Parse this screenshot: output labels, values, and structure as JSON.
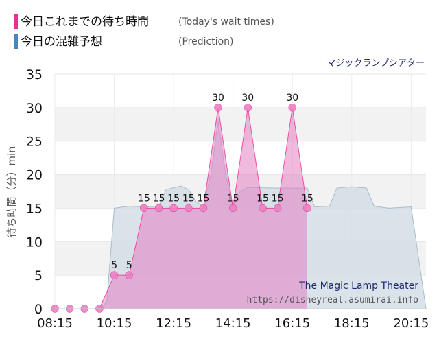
{
  "legend": {
    "today": {
      "title": "今日これまでの待ち時間",
      "subtitle": "(Today's wait times)",
      "color": "#e8308f"
    },
    "prediction": {
      "title": "今日の混雑予想",
      "subtitle": "(Prediction)",
      "color": "#4a86b9"
    }
  },
  "watermark": {
    "name": "The Magic Lamp Theater",
    "url": "https://disneyreal.asumirai.info"
  },
  "chart_data": {
    "type": "area",
    "title": "マジックランプシアター",
    "ylabel": "待ち時間（分）min",
    "xlabel": "",
    "ylim": [
      0,
      35
    ],
    "yticks": [
      0,
      5,
      10,
      15,
      20,
      25,
      30,
      35
    ],
    "xlim": [
      "08:15",
      "20:45"
    ],
    "xticks": [
      "08:15",
      "10:15",
      "12:15",
      "14:15",
      "16:15",
      "18:15",
      "20:15"
    ],
    "grid": true,
    "series": [
      {
        "name": "今日これまでの待ち時間",
        "color": "#e8308f",
        "fill": "#e37fc2",
        "style": "area-with-markers",
        "points": [
          {
            "t": "08:15",
            "v": 0
          },
          {
            "t": "08:45",
            "v": 0
          },
          {
            "t": "09:15",
            "v": 0
          },
          {
            "t": "09:45",
            "v": 0
          },
          {
            "t": "10:15",
            "v": 5
          },
          {
            "t": "10:45",
            "v": 5
          },
          {
            "t": "11:15",
            "v": 15
          },
          {
            "t": "11:45",
            "v": 15
          },
          {
            "t": "12:15",
            "v": 15
          },
          {
            "t": "12:45",
            "v": 15
          },
          {
            "t": "13:15",
            "v": 15
          },
          {
            "t": "13:45",
            "v": 30
          },
          {
            "t": "14:15",
            "v": 15
          },
          {
            "t": "14:45",
            "v": 30
          },
          {
            "t": "15:15",
            "v": 15
          },
          {
            "t": "15:45",
            "v": 15
          },
          {
            "t": "16:15",
            "v": 30
          },
          {
            "t": "16:45",
            "v": 15
          }
        ]
      },
      {
        "name": "今日の混雑予想",
        "color": "#a9bccb",
        "fill": "#d3dee6",
        "style": "area",
        "points": [
          {
            "t": "08:15",
            "v": 0
          },
          {
            "t": "09:45",
            "v": 0
          },
          {
            "t": "10:00",
            "v": 1
          },
          {
            "t": "10:15",
            "v": 15
          },
          {
            "t": "10:45",
            "v": 15.3
          },
          {
            "t": "11:15",
            "v": 15.2
          },
          {
            "t": "11:45",
            "v": 15.3
          },
          {
            "t": "12:00",
            "v": 17.8
          },
          {
            "t": "12:30",
            "v": 18.3
          },
          {
            "t": "12:45",
            "v": 17.8
          },
          {
            "t": "13:00",
            "v": 16
          },
          {
            "t": "13:15",
            "v": 15.2
          },
          {
            "t": "13:30",
            "v": 20
          },
          {
            "t": "13:45",
            "v": 28
          },
          {
            "t": "14:00",
            "v": 20
          },
          {
            "t": "14:15",
            "v": 15.2
          },
          {
            "t": "14:30",
            "v": 17.5
          },
          {
            "t": "14:45",
            "v": 18.1
          },
          {
            "t": "15:45",
            "v": 18
          },
          {
            "t": "16:15",
            "v": 18
          },
          {
            "t": "16:45",
            "v": 18
          },
          {
            "t": "17:00",
            "v": 15.2
          },
          {
            "t": "17:30",
            "v": 15.3
          },
          {
            "t": "17:45",
            "v": 18
          },
          {
            "t": "18:15",
            "v": 18.2
          },
          {
            "t": "18:45",
            "v": 18
          },
          {
            "t": "19:00",
            "v": 15.3
          },
          {
            "t": "19:30",
            "v": 15
          },
          {
            "t": "20:15",
            "v": 15.2
          },
          {
            "t": "20:45",
            "v": 0
          }
        ]
      }
    ]
  }
}
